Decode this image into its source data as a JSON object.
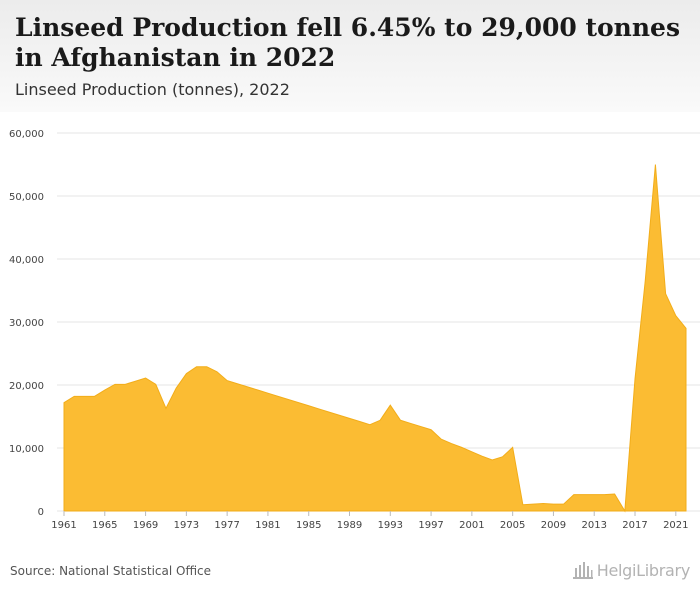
{
  "header": {
    "title": "Linseed Production fell 6.45% to 29,000 tonnes in Afghanistan in 2022",
    "subtitle": "Linseed Production (tonnes), 2022"
  },
  "footer": {
    "source": "Source: National Statistical Office",
    "brand": "HelgiLibrary"
  },
  "colors": {
    "area_fill": "#fbbc33",
    "area_stroke": "#f2ad1a",
    "grid": "#e6e6e6",
    "axis_text": "#444444"
  },
  "chart_data": {
    "type": "area",
    "title": "Linseed Production fell 6.45% to 29,000 tonnes in Afghanistan in 2022",
    "subtitle": "Linseed Production (tonnes), 2022",
    "xlabel": "",
    "ylabel": "",
    "xlim": [
      1961,
      2022
    ],
    "ylim": [
      0,
      60000
    ],
    "grid": true,
    "legend": "none",
    "x_tick_labels": [
      "1961",
      "1965",
      "1969",
      "1973",
      "1977",
      "1981",
      "1985",
      "1989",
      "1993",
      "1997",
      "2001",
      "2005",
      "2009",
      "2013",
      "2017",
      "2021"
    ],
    "y_tick_labels": [
      "0",
      "10,000",
      "20,000",
      "30,000",
      "40,000",
      "50,000",
      "60,000"
    ],
    "y_ticks": [
      0,
      10000,
      20000,
      30000,
      40000,
      50000,
      60000
    ],
    "series": [
      {
        "x": [
          1961,
          1962,
          1963,
          1964,
          1965,
          1966,
          1967,
          1968,
          1969,
          1970,
          1971,
          1972,
          1973,
          1974,
          1975,
          1976,
          1977,
          1978,
          1979,
          1980,
          1981,
          1982,
          1983,
          1984,
          1985,
          1986,
          1987,
          1988,
          1989,
          1990,
          1991,
          1992,
          1993,
          1994,
          1995,
          1996,
          1997,
          1998,
          1999,
          2000,
          2001,
          2002,
          2003,
          2004,
          2005,
          2006,
          2007,
          2008,
          2009,
          2010,
          2011,
          2012,
          2013,
          2014,
          2015,
          2016,
          2017,
          2018,
          2019,
          2020,
          2021,
          2022
        ],
        "values": [
          17200,
          18200,
          18200,
          18200,
          19200,
          20100,
          20100,
          20600,
          21100,
          20100,
          16300,
          19500,
          21800,
          22900,
          22900,
          22100,
          20700,
          20200,
          19700,
          19200,
          18700,
          18200,
          17700,
          17200,
          16700,
          16200,
          15700,
          15200,
          14700,
          14200,
          13700,
          14400,
          16800,
          14400,
          13900,
          13400,
          12900,
          11400,
          10700,
          10100,
          9400,
          8700,
          8100,
          8600,
          10100,
          1000,
          1100,
          1200,
          1100,
          1100,
          2600,
          2600,
          2600,
          2600,
          2700,
          0,
          21000,
          36500,
          55000,
          34500,
          31000,
          29000
        ]
      }
    ]
  }
}
